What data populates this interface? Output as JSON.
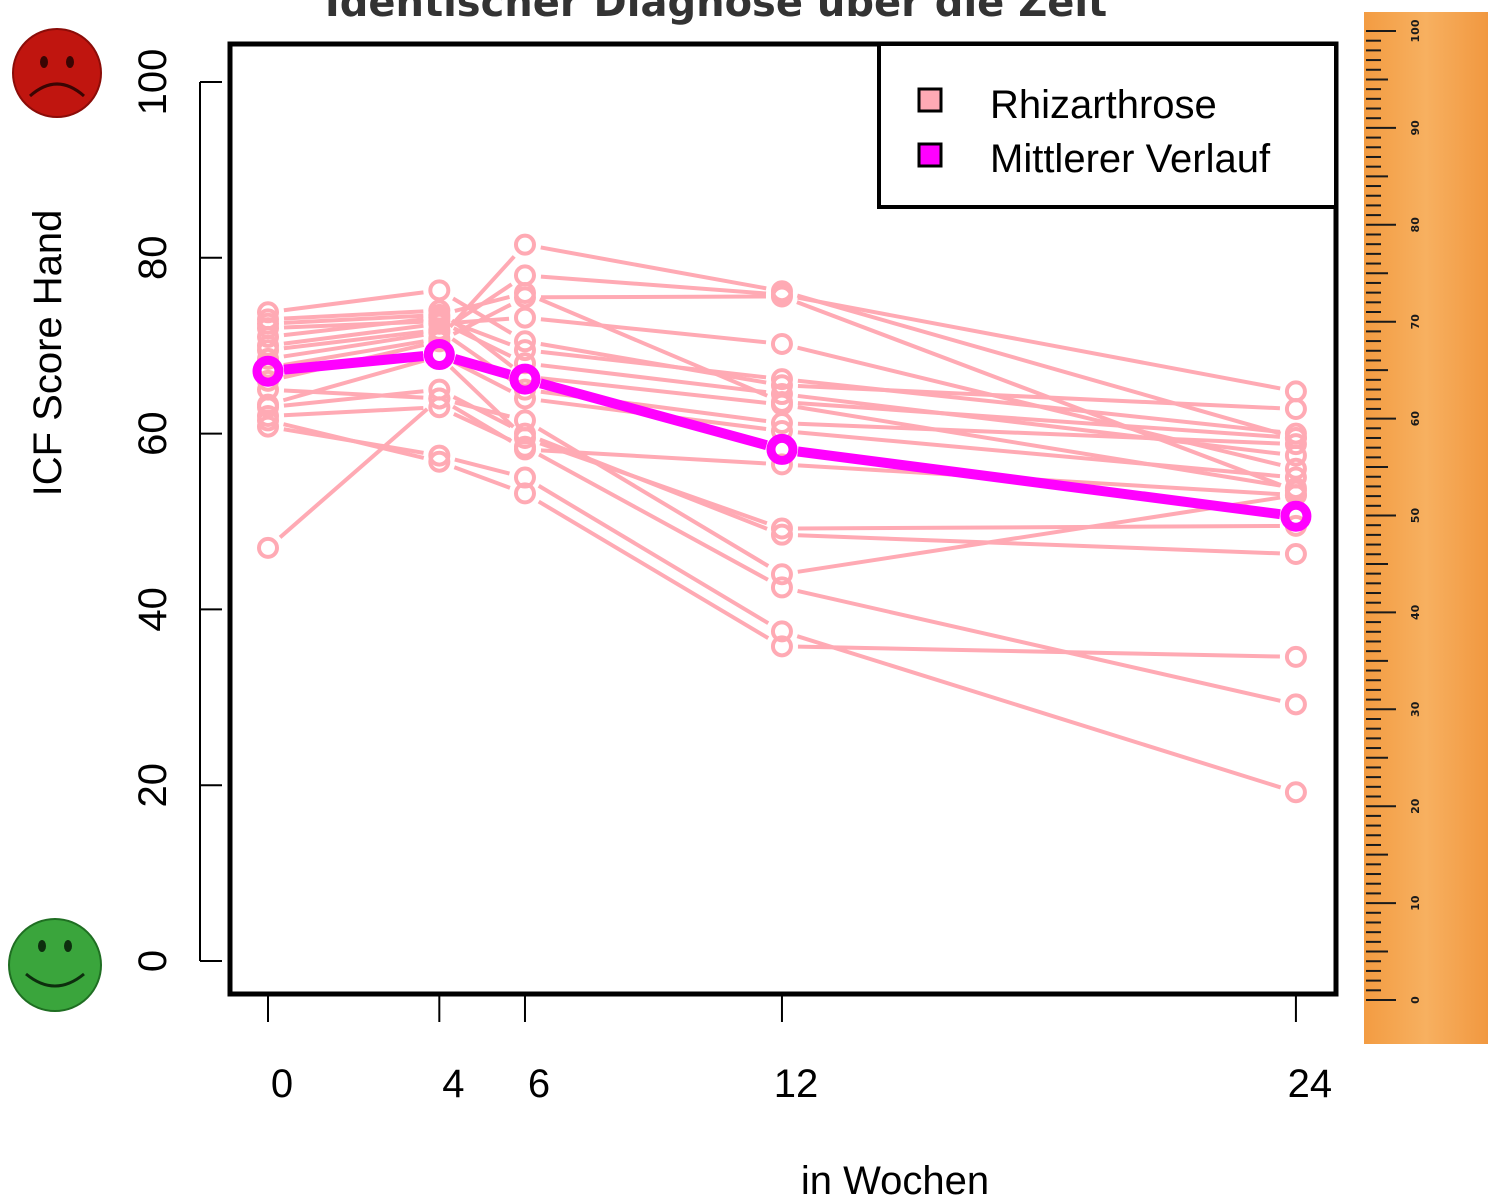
{
  "title": "Identischer Diagnose über die Zeit",
  "colors": {
    "individual": "#ffaab4",
    "mean": "#ff00ff",
    "ruler": "#f4a24a"
  },
  "chart_data": {
    "type": "line",
    "xlabel": "in Wochen",
    "ylabel": "ICF Score Hand",
    "x_ticks": [
      0,
      4,
      6,
      12,
      24
    ],
    "y_ticks": [
      0,
      20,
      40,
      60,
      80,
      100
    ],
    "xlim": [
      -1,
      25
    ],
    "ylim": [
      -4,
      104
    ],
    "legend": {
      "position": "top-right",
      "entries": [
        {
          "label": "Rhizarthrose",
          "color": "#ffaab4"
        },
        {
          "label": "Mittlerer Verlauf",
          "color": "#ff00ff"
        }
      ]
    },
    "series": [
      {
        "name": "Mittlerer Verlauf",
        "x": [
          0,
          4,
          6,
          12,
          24
        ],
        "values": [
          67.1,
          69.0,
          66.2,
          58.2,
          50.6
        ]
      }
    ],
    "individual_series": [
      {
        "x": [
          0,
          4,
          6,
          12,
          24
        ],
        "values": [
          47.0,
          64.0,
          61.5,
          44.0,
          53.0
        ]
      },
      {
        "x": [
          0,
          4,
          6,
          12,
          24
        ],
        "values": [
          60.8,
          57.5,
          55.0,
          37.5,
          19.2
        ]
      },
      {
        "x": [
          0,
          4,
          6,
          12,
          24
        ],
        "values": [
          61.5,
          56.8,
          53.2,
          35.8,
          34.6
        ]
      },
      {
        "x": [
          0,
          4,
          6,
          12,
          24
        ],
        "values": [
          62.0,
          63.0,
          58.5,
          42.5,
          29.2
        ]
      },
      {
        "x": [
          0,
          4,
          6,
          12,
          24
        ],
        "values": [
          63.0,
          65.0,
          60.0,
          48.5,
          46.3
        ]
      },
      {
        "x": [
          0,
          4,
          6,
          12,
          24
        ],
        "values": [
          63.3,
          68.8,
          59.5,
          49.2,
          49.5
        ]
      },
      {
        "x": [
          0,
          4,
          6,
          12,
          24
        ],
        "values": [
          66.0,
          70.5,
          75.5,
          75.6,
          53.5
        ]
      },
      {
        "x": [
          0,
          4,
          6,
          12,
          24
        ],
        "values": [
          67.5,
          70.8,
          81.5,
          76.2,
          59.5
        ]
      },
      {
        "x": [
          0,
          4,
          6,
          12,
          24
        ],
        "values": [
          68.5,
          71.5,
          78.0,
          75.8,
          64.8
        ]
      },
      {
        "x": [
          0,
          4,
          6,
          12,
          24
        ],
        "values": [
          70.0,
          72.5,
          73.2,
          70.2,
          56.0
        ]
      },
      {
        "x": [
          0,
          4,
          6,
          12,
          24
        ],
        "values": [
          71.0,
          73.2,
          69.5,
          66.2,
          60.0
        ]
      },
      {
        "x": [
          0,
          4,
          6,
          12,
          24
        ],
        "values": [
          72.0,
          72.8,
          68.0,
          64.5,
          57.5
        ]
      },
      {
        "x": [
          0,
          4,
          6,
          12,
          24
        ],
        "values": [
          73.0,
          74.0,
          66.5,
          63.3,
          53.8
        ]
      },
      {
        "x": [
          0,
          4,
          6,
          12,
          24
        ],
        "values": [
          73.8,
          76.3,
          70.5,
          65.5,
          62.8
        ]
      },
      {
        "x": [
          0,
          4,
          6,
          12,
          24
        ],
        "values": [
          69.5,
          71.8,
          65.0,
          61.2,
          58.8
        ]
      },
      {
        "x": [
          0,
          4,
          6,
          12,
          24
        ],
        "values": [
          67.0,
          69.0,
          64.0,
          60.3,
          55.0
        ]
      },
      {
        "x": [
          0,
          4,
          6,
          12,
          24
        ],
        "values": [
          65.0,
          64.0,
          58.2,
          56.5,
          53.0
        ]
      },
      {
        "x": [
          0,
          4,
          6,
          12,
          24
        ],
        "values": [
          72.5,
          73.5,
          76.0,
          63.6,
          59.5
        ]
      }
    ],
    "ruler_labels": [
      "0",
      "10",
      "20",
      "30",
      "40",
      "50",
      "60",
      "70",
      "80",
      "90",
      "100"
    ]
  }
}
